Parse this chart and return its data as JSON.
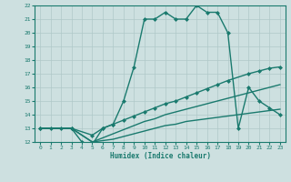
{
  "title": "",
  "xlabel": "Humidex (Indice chaleur)",
  "xlim": [
    -0.5,
    23.5
  ],
  "ylim": [
    12,
    22
  ],
  "xticks": [
    0,
    1,
    2,
    3,
    4,
    5,
    6,
    7,
    8,
    9,
    10,
    11,
    12,
    13,
    14,
    15,
    16,
    17,
    18,
    19,
    20,
    21,
    22,
    23
  ],
  "yticks": [
    12,
    13,
    14,
    15,
    16,
    17,
    18,
    19,
    20,
    21,
    22
  ],
  "bg_color": "#cde0e0",
  "line_color": "#1a7a6e",
  "grid_color": "#afc8c8",
  "lines": [
    {
      "x": [
        0,
        1,
        2,
        3,
        4,
        5,
        6,
        7,
        8,
        9,
        10,
        11,
        12,
        13,
        14,
        15,
        16,
        17,
        18,
        19,
        20,
        21,
        22,
        23
      ],
      "y": [
        13,
        13,
        13,
        13,
        12,
        11.8,
        13,
        13.3,
        15,
        17.5,
        21,
        21,
        21.5,
        21,
        21,
        22,
        21.5,
        21.5,
        20,
        13,
        16,
        15,
        14.5,
        14
      ],
      "marker": "D",
      "markersize": 2.0,
      "linewidth": 1.0
    },
    {
      "x": [
        0,
        3,
        5,
        6,
        7,
        8,
        9,
        10,
        11,
        12,
        13,
        14,
        15,
        16,
        17,
        18,
        20,
        21,
        22,
        23
      ],
      "y": [
        13,
        13,
        12.5,
        13.0,
        13.3,
        13.6,
        13.9,
        14.2,
        14.5,
        14.8,
        15.0,
        15.3,
        15.6,
        15.9,
        16.2,
        16.5,
        17.0,
        17.2,
        17.4,
        17.5
      ],
      "marker": "D",
      "markersize": 2.0,
      "linewidth": 1.0
    },
    {
      "x": [
        0,
        3,
        5,
        6,
        7,
        8,
        9,
        10,
        11,
        12,
        13,
        14,
        15,
        16,
        17,
        18,
        19,
        20,
        21,
        22,
        23
      ],
      "y": [
        13,
        13,
        12,
        12.3,
        12.6,
        12.9,
        13.2,
        13.5,
        13.7,
        14.0,
        14.2,
        14.4,
        14.6,
        14.8,
        15.0,
        15.2,
        15.4,
        15.6,
        15.8,
        16.0,
        16.2
      ],
      "marker": null,
      "markersize": 0,
      "linewidth": 1.0
    },
    {
      "x": [
        0,
        3,
        5,
        6,
        7,
        8,
        9,
        10,
        11,
        12,
        13,
        14,
        15,
        16,
        17,
        18,
        19,
        20,
        21,
        22,
        23
      ],
      "y": [
        13,
        13,
        12,
        12.1,
        12.2,
        12.4,
        12.6,
        12.8,
        13.0,
        13.2,
        13.3,
        13.5,
        13.6,
        13.7,
        13.8,
        13.9,
        14.0,
        14.1,
        14.2,
        14.3,
        14.4
      ],
      "marker": null,
      "markersize": 0,
      "linewidth": 1.0
    }
  ]
}
